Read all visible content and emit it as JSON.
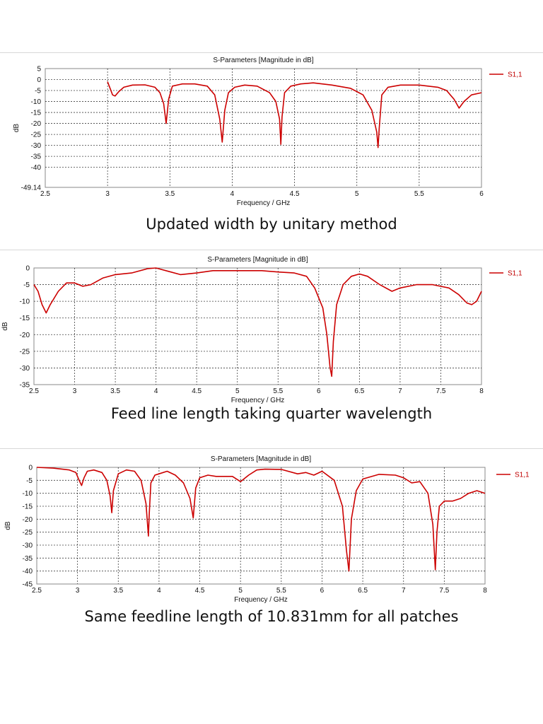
{
  "panels": [
    {
      "caption": "Updated width by unitary method",
      "chart_data": {
        "type": "line",
        "title": "S-Parameters [Magnitude in dB]",
        "xlabel": "Frequency / GHz",
        "ylabel": "dB",
        "xlim": [
          2.5,
          6
        ],
        "ylim": [
          -49.14,
          5
        ],
        "xticks": [
          2.5,
          3,
          3.5,
          4,
          4.5,
          5,
          5.5,
          6
        ],
        "xtick_labels": [
          "2.5",
          "3",
          "3.5",
          "4",
          "4.5",
          "5",
          "5.5",
          "6"
        ],
        "yticks": [
          5,
          0,
          -5,
          -10,
          -15,
          -20,
          -25,
          -30,
          -35,
          -40,
          -49.14
        ],
        "ytick_labels": [
          "5",
          "0",
          "-5",
          "-10",
          "-15",
          "-20",
          "-25",
          "-30",
          "-35",
          "-40",
          "-49.14"
        ],
        "grid": true,
        "legend_position": "top-right",
        "series": [
          {
            "name": "S1,1",
            "color": "#cc0000",
            "x": [
              3.0,
              3.02,
              3.04,
              3.06,
              3.09,
              3.13,
              3.2,
              3.3,
              3.38,
              3.42,
              3.45,
              3.47,
              3.49,
              3.52,
              3.6,
              3.7,
              3.8,
              3.86,
              3.9,
              3.92,
              3.94,
              3.97,
              4.02,
              4.1,
              4.2,
              4.3,
              4.35,
              4.38,
              4.39,
              4.4,
              4.42,
              4.47,
              4.55,
              4.65,
              4.8,
              4.95,
              5.05,
              5.12,
              5.16,
              5.17,
              5.18,
              5.2,
              5.25,
              5.35,
              5.5,
              5.65,
              5.72,
              5.78,
              5.82,
              5.86,
              5.92,
              6.0
            ],
            "y": [
              -1,
              -4,
              -7,
              -7.5,
              -5.5,
              -3.5,
              -2.5,
              -2.4,
              -3.5,
              -6,
              -11,
              -20,
              -9,
              -3,
              -2,
              -2,
              -3,
              -7,
              -18,
              -28.5,
              -14,
              -6,
              -3.5,
              -2.5,
              -3,
              -6,
              -10,
              -18,
              -29.5,
              -17,
              -6,
              -3,
              -2,
              -1.5,
              -2.5,
              -4,
              -7,
              -14,
              -24,
              -31,
              -22,
              -7,
              -3.5,
              -2.5,
              -2.5,
              -3.5,
              -5,
              -9,
              -13,
              -10,
              -7,
              -6
            ]
          }
        ]
      }
    },
    {
      "caption": "Feed line length taking quarter wavelength",
      "chart_data": {
        "type": "line",
        "title": "S-Parameters [Magnitude in dB]",
        "xlabel": "Frequency / GHz",
        "ylabel": "dB",
        "xlim": [
          2.5,
          8
        ],
        "ylim": [
          -35,
          0
        ],
        "xticks": [
          2.5,
          3,
          3.5,
          4,
          4.5,
          5,
          5.5,
          6,
          6.5,
          7,
          7.5,
          8
        ],
        "xtick_labels": [
          "2.5",
          "3",
          "3.5",
          "4",
          "4.5",
          "5",
          "5.5",
          "6",
          "6.5",
          "7",
          "7.5",
          "8"
        ],
        "yticks": [
          0,
          -5,
          -10,
          -15,
          -20,
          -25,
          -30,
          -35
        ],
        "ytick_labels": [
          "0",
          "-5",
          "-10",
          "-15",
          "-20",
          "-25",
          "-30",
          "-35"
        ],
        "grid": true,
        "legend_position": "top-right",
        "series": [
          {
            "name": "S1,1",
            "color": "#cc0000",
            "x": [
              2.5,
              2.55,
              2.6,
              2.65,
              2.7,
              2.8,
              2.9,
              3.0,
              3.1,
              3.2,
              3.35,
              3.5,
              3.7,
              3.9,
              4.0,
              4.15,
              4.3,
              4.5,
              4.7,
              5.0,
              5.3,
              5.5,
              5.7,
              5.85,
              5.95,
              6.05,
              6.1,
              6.14,
              6.16,
              6.18,
              6.22,
              6.3,
              6.4,
              6.5,
              6.6,
              6.75,
              6.9,
              7.0,
              7.2,
              7.4,
              7.6,
              7.72,
              7.82,
              7.88,
              7.94,
              8.0
            ],
            "y": [
              -5,
              -7,
              -11,
              -13.5,
              -11,
              -7,
              -4.5,
              -4.5,
              -5.5,
              -5,
              -3,
              -2,
              -1.5,
              -0.2,
              0,
              -1,
              -2,
              -1.5,
              -0.8,
              -0.8,
              -0.8,
              -1.2,
              -1.5,
              -2.5,
              -6,
              -12,
              -20,
              -30,
              -32.5,
              -22,
              -11,
              -5,
              -2.5,
              -1.8,
              -2.5,
              -5,
              -7,
              -6,
              -5,
              -5,
              -6,
              -8,
              -10.5,
              -11,
              -10,
              -7
            ]
          }
        ]
      }
    },
    {
      "caption": "Same feedline length of 10.831mm for all patches",
      "chart_data": {
        "type": "line",
        "title": "S-Parameters [Magnitude in dB]",
        "xlabel": "Frequency / GHz",
        "ylabel": "dB",
        "xlim": [
          2.5,
          8
        ],
        "ylim": [
          -45,
          0
        ],
        "xticks": [
          2.5,
          3,
          3.5,
          4,
          4.5,
          5,
          5.5,
          6,
          6.5,
          7,
          7.5,
          8
        ],
        "xtick_labels": [
          "2.5",
          "3",
          "3.5",
          "4",
          "4.5",
          "5",
          "5.5",
          "6",
          "6.5",
          "7",
          "7.5",
          "8"
        ],
        "yticks": [
          0,
          -5,
          -10,
          -15,
          -20,
          -25,
          -30,
          -35,
          -40,
          -45
        ],
        "ytick_labels": [
          "0",
          "-5",
          "-10",
          "-15",
          "-20",
          "-25",
          "-30",
          "-35",
          "-40",
          "-45"
        ],
        "grid": true,
        "legend_position": "top-right",
        "series": [
          {
            "name": "S1,1",
            "color": "#cc0000",
            "x": [
              2.5,
              2.7,
              2.9,
              2.98,
              3.02,
              3.05,
              3.08,
              3.12,
              3.2,
              3.3,
              3.36,
              3.4,
              3.42,
              3.44,
              3.5,
              3.6,
              3.7,
              3.78,
              3.84,
              3.87,
              3.88,
              3.9,
              3.95,
              4.0,
              4.1,
              4.2,
              4.3,
              4.38,
              4.42,
              4.45,
              4.5,
              4.6,
              4.7,
              4.9,
              5.0,
              5.1,
              5.2,
              5.3,
              5.5,
              5.7,
              5.8,
              5.9,
              6.0,
              6.15,
              6.25,
              6.3,
              6.33,
              6.36,
              6.42,
              6.5,
              6.7,
              6.9,
              7.0,
              7.1,
              7.2,
              7.3,
              7.36,
              7.39,
              7.41,
              7.44,
              7.5,
              7.6,
              7.7,
              7.8,
              7.9,
              8.0
            ],
            "y": [
              0,
              -0.3,
              -1,
              -2,
              -5,
              -7,
              -4,
              -1.5,
              -1,
              -2,
              -5,
              -11,
              -17.5,
              -9,
              -2.5,
              -1,
              -1.5,
              -5,
              -14,
              -26.5,
              -18,
              -6,
              -3,
              -2.5,
              -1.5,
              -3,
              -6,
              -12,
              -19.5,
              -8,
              -4,
              -3,
              -3.5,
              -3.5,
              -5.5,
              -3,
              -1,
              -0.7,
              -0.8,
              -2.5,
              -2,
              -3,
              -1.5,
              -5,
              -15,
              -32,
              -40,
              -20,
              -9,
              -4.5,
              -2.7,
              -3,
              -4,
              -6,
              -5.5,
              -10,
              -22,
              -39.5,
              -25,
              -15,
              -13,
              -13,
              -12,
              -10,
              -9,
              -10
            ]
          }
        ]
      }
    }
  ]
}
